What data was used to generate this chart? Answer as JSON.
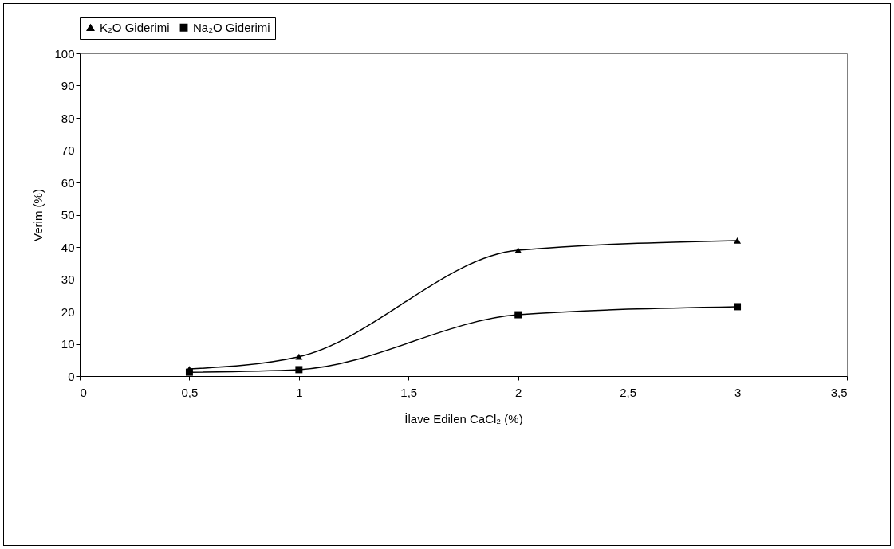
{
  "chart_data": {
    "type": "line",
    "xlabel": "İlave Edilen CaCl₂ (%)",
    "ylabel": "Verim (%)",
    "x": [
      0.5,
      1,
      2,
      3
    ],
    "series": [
      {
        "name": "K₂O Giderimi",
        "color": "#000000",
        "marker": "triangle",
        "values": [
          2.2,
          6,
          39,
          42
        ]
      },
      {
        "name": "Na₂O Giderimi",
        "color": "#000000",
        "marker": "square",
        "values": [
          1.2,
          2,
          19,
          21.5
        ]
      }
    ],
    "xlim": [
      0,
      3.5
    ],
    "xticks": [
      0,
      {
        "value": 0.5,
        "label": "0,5"
      },
      1,
      {
        "value": 1.5,
        "label": "1,5"
      },
      2,
      {
        "value": 2.5,
        "label": "2,5"
      },
      3,
      {
        "value": 3.5,
        "label": "3,5"
      }
    ],
    "ylim": [
      0,
      100
    ],
    "yticks": [
      0,
      10,
      20,
      30,
      40,
      50,
      60,
      70,
      80,
      90,
      100
    ],
    "legend": "top",
    "grid": false,
    "line_style": "solid"
  }
}
